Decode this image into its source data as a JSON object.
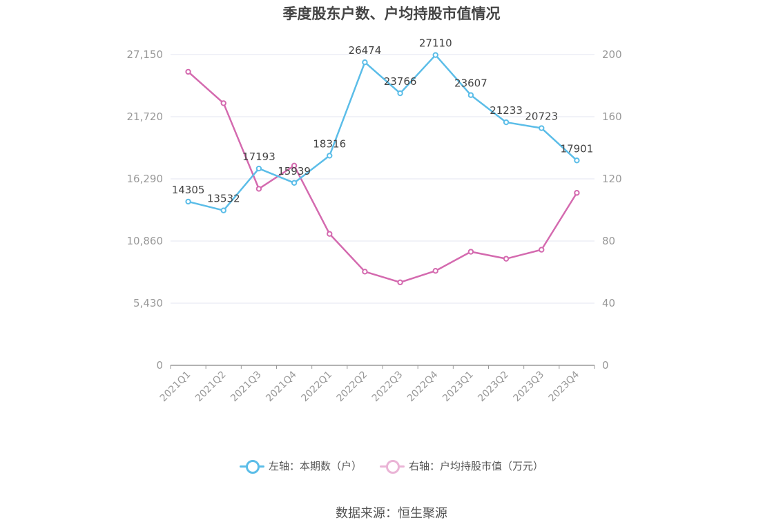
{
  "chart_data": {
    "type": "line",
    "title": "季度股东户数、户均持股市值情况",
    "categories": [
      "2021Q1",
      "2021Q2",
      "2021Q3",
      "2021Q4",
      "2022Q1",
      "2022Q2",
      "2022Q3",
      "2022Q4",
      "2023Q1",
      "2023Q2",
      "2023Q3",
      "2023Q4"
    ],
    "left_axis": {
      "ticks": [
        "0",
        "5,430",
        "10,860",
        "16,290",
        "21,720",
        "27,150"
      ],
      "ylim": [
        0,
        27150
      ]
    },
    "right_axis": {
      "ticks": [
        "0",
        "40",
        "80",
        "120",
        "160",
        "200"
      ],
      "ylim": [
        0,
        200
      ]
    },
    "series": [
      {
        "name": "左轴：本期数（户）",
        "axis": "left",
        "color": "#5bbde8",
        "values": [
          14305,
          13532,
          17193,
          15939,
          18316,
          26474,
          23766,
          27110,
          23607,
          21233,
          20723,
          17901
        ],
        "labels": [
          "14305",
          "13532",
          "17193",
          "15939",
          "18316",
          "26474",
          "23766",
          "27110",
          "23607",
          "21233",
          "20723",
          "17901"
        ]
      },
      {
        "name": "右轴：户均持股市值（万元）",
        "axis": "right",
        "color": "#d46aaf",
        "values": [
          188.9,
          168.7,
          113.6,
          128.5,
          84.6,
          60.3,
          53.4,
          60.8,
          73.1,
          68.6,
          74.4,
          111.0
        ]
      }
    ],
    "grid": true,
    "legend_position": "bottom"
  },
  "source": "数据来源：恒生聚源"
}
